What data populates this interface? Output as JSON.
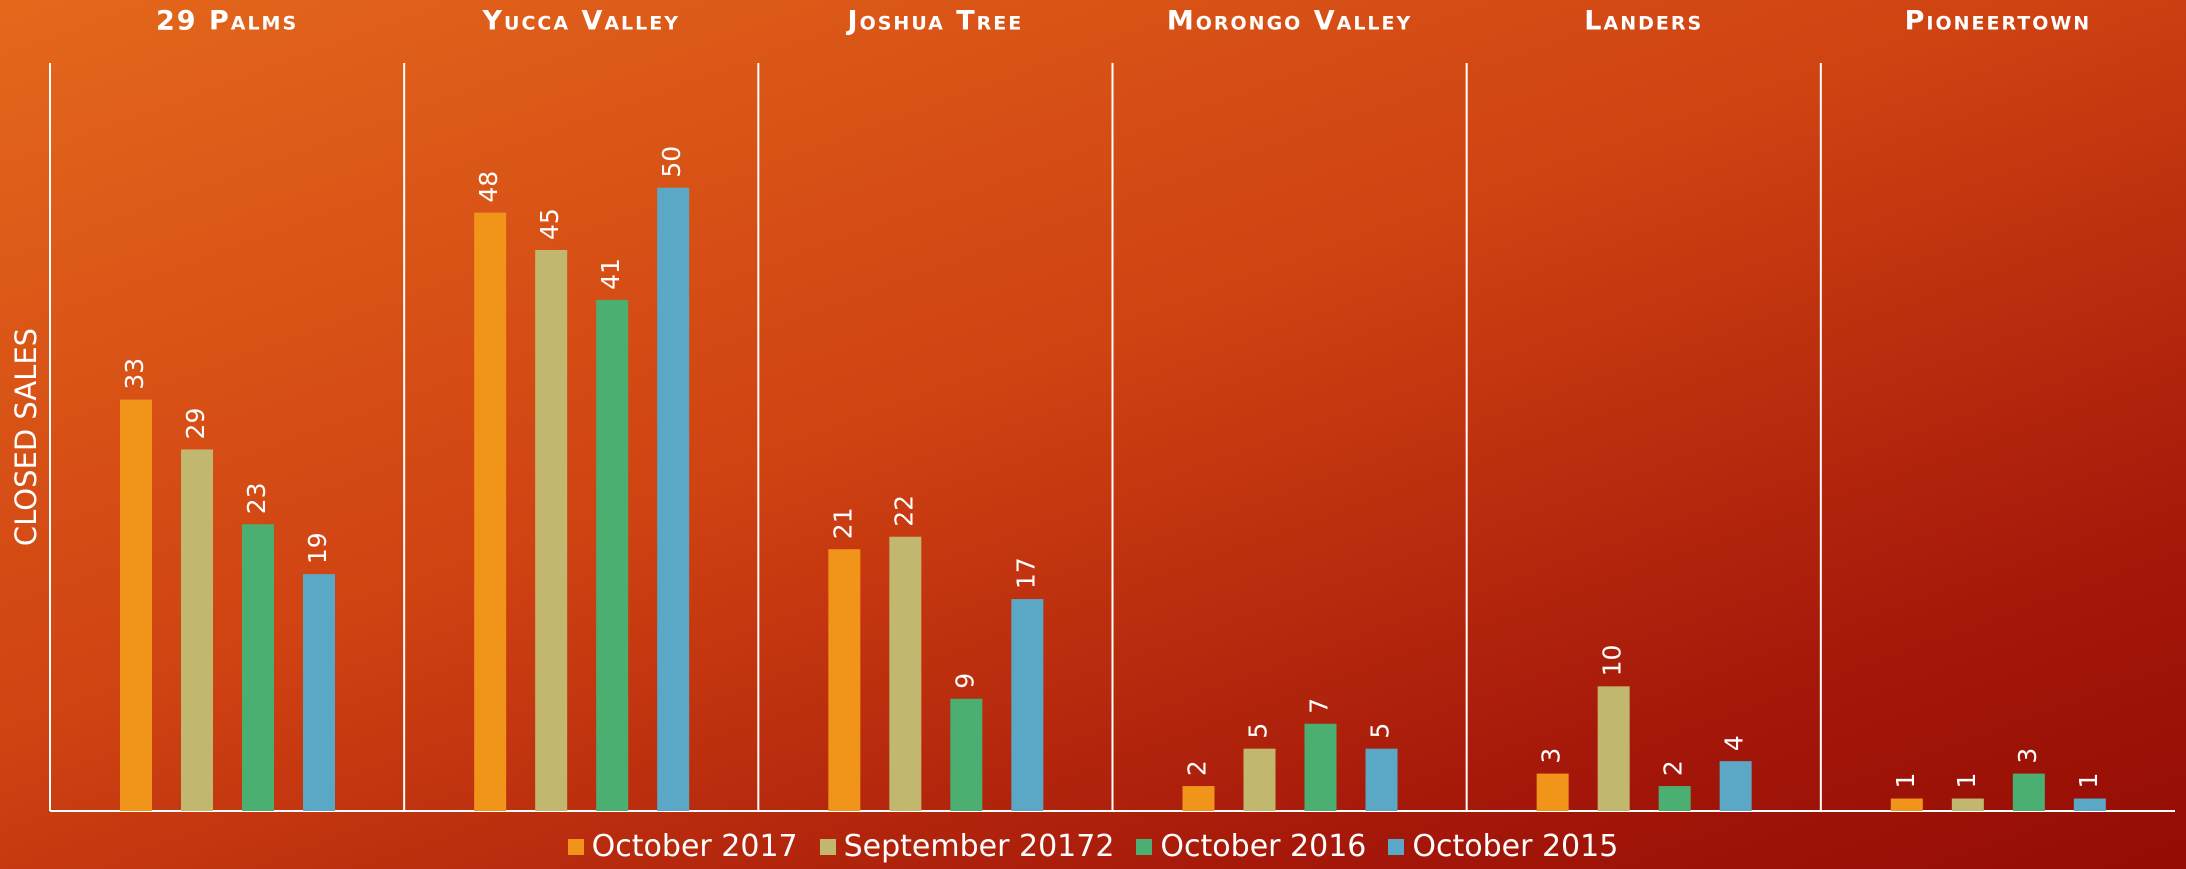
{
  "chart_data": {
    "type": "bar",
    "y_label": "CLOSED SALES",
    "categories": [
      "29 Palms",
      "Yucca Valley",
      "Joshua Tree",
      "Morongo Valley",
      "Landers",
      "Pioneertown"
    ],
    "series": [
      {
        "name": "October 2017",
        "color": "#f0941a",
        "values": [
          33,
          48,
          21,
          2,
          3,
          1
        ]
      },
      {
        "name": "September 20172",
        "color": "#c2b76e",
        "values": [
          29,
          45,
          22,
          5,
          10,
          1
        ]
      },
      {
        "name": "October 2016",
        "color": "#4caf72",
        "values": [
          23,
          41,
          9,
          7,
          2,
          3
        ]
      },
      {
        "name": "October 2015",
        "color": "#5aa8c6",
        "values": [
          19,
          50,
          17,
          5,
          4,
          1
        ]
      }
    ],
    "ylim": [
      0,
      60
    ],
    "legend": "bottom"
  }
}
